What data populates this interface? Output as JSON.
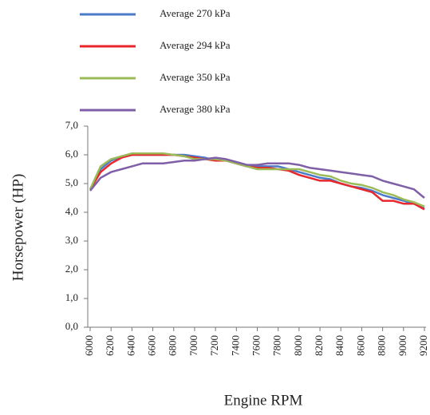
{
  "chart_data": {
    "type": "line",
    "x_label": "Engine RPM",
    "y_label": "Horsepower (HP)",
    "x": [
      6000,
      6100,
      6200,
      6300,
      6400,
      6500,
      6600,
      6700,
      6800,
      6900,
      7000,
      7100,
      7200,
      7300,
      7400,
      7500,
      7600,
      7700,
      7800,
      7900,
      8000,
      8100,
      8200,
      8300,
      8400,
      8500,
      8600,
      8700,
      8800,
      8900,
      9000,
      9100,
      9200
    ],
    "series": [
      {
        "name": "Average 270 kPa",
        "color": "#4a7ac8",
        "values": [
          4.8,
          5.5,
          5.8,
          5.95,
          6.0,
          6.0,
          6.0,
          6.0,
          6.0,
          6.0,
          5.95,
          5.9,
          5.8,
          5.8,
          5.7,
          5.6,
          5.6,
          5.6,
          5.6,
          5.5,
          5.4,
          5.3,
          5.2,
          5.15,
          5.0,
          4.9,
          4.85,
          4.75,
          4.6,
          4.5,
          4.4,
          4.3,
          4.15
        ]
      },
      {
        "name": "Average 294 kPa",
        "color": "#e8262b",
        "values": [
          4.8,
          5.4,
          5.7,
          5.9,
          6.0,
          6.0,
          6.0,
          6.0,
          6.0,
          5.95,
          5.9,
          5.85,
          5.8,
          5.8,
          5.7,
          5.6,
          5.55,
          5.55,
          5.5,
          5.45,
          5.3,
          5.2,
          5.1,
          5.1,
          5.0,
          4.9,
          4.8,
          4.7,
          4.4,
          4.4,
          4.3,
          4.3,
          4.1
        ]
      },
      {
        "name": "Average 350 kPa",
        "color": "#9bbb59",
        "values": [
          4.8,
          5.6,
          5.85,
          5.95,
          6.05,
          6.05,
          6.05,
          6.05,
          6.0,
          5.95,
          5.85,
          5.85,
          5.85,
          5.8,
          5.7,
          5.6,
          5.5,
          5.5,
          5.5,
          5.5,
          5.5,
          5.4,
          5.3,
          5.25,
          5.1,
          5.0,
          4.95,
          4.85,
          4.7,
          4.6,
          4.45,
          4.35,
          4.2
        ]
      },
      {
        "name": "Average 380 kPa",
        "color": "#7f5fa8",
        "values": [
          4.75,
          5.2,
          5.4,
          5.5,
          5.6,
          5.7,
          5.7,
          5.7,
          5.75,
          5.8,
          5.8,
          5.85,
          5.9,
          5.85,
          5.75,
          5.65,
          5.65,
          5.7,
          5.7,
          5.7,
          5.65,
          5.55,
          5.5,
          5.45,
          5.4,
          5.35,
          5.3,
          5.25,
          5.1,
          5.0,
          4.9,
          4.8,
          4.5
        ]
      }
    ],
    "xlim": [
      6000,
      9200
    ],
    "xticks": [
      6000,
      6200,
      6400,
      6600,
      6800,
      7000,
      7200,
      7400,
      7600,
      7800,
      8000,
      8200,
      8400,
      8600,
      8800,
      9000,
      9200
    ],
    "ylim": [
      0,
      7
    ],
    "yticks": [
      {
        "value": 0,
        "label": "0,0"
      },
      {
        "value": 1,
        "label": "1,0"
      },
      {
        "value": 2,
        "label": "2,0"
      },
      {
        "value": 3,
        "label": "3,0"
      },
      {
        "value": 4,
        "label": "4,0"
      },
      {
        "value": 5,
        "label": "5,0"
      },
      {
        "value": 6,
        "label": "6,0"
      },
      {
        "value": 7,
        "label": "7,0"
      }
    ],
    "legend": "top-left",
    "grid": false
  }
}
